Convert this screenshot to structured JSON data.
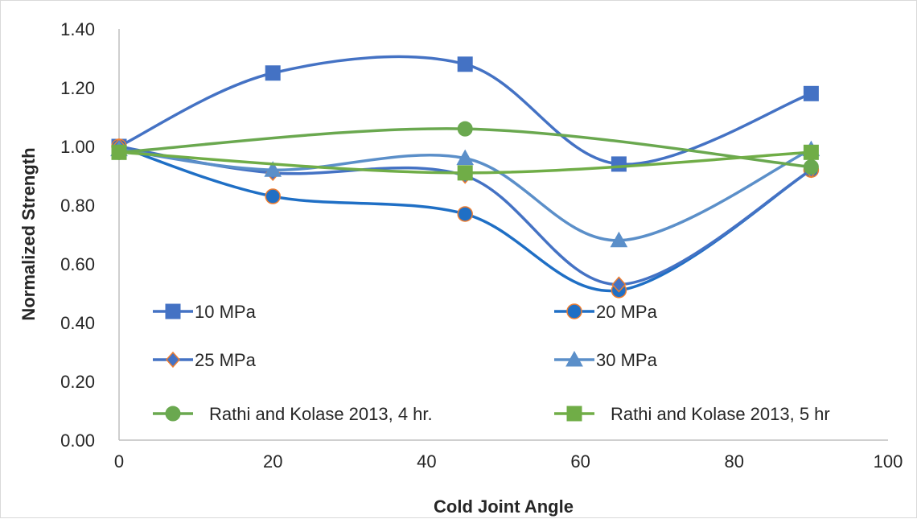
{
  "chart_data": {
    "type": "line",
    "title": "",
    "xlabel": "Cold Joint Angle",
    "ylabel": "Normalized Strength",
    "xlim": [
      0,
      100
    ],
    "ylim": [
      0,
      1.4
    ],
    "x_ticks": [
      "0",
      "20",
      "40",
      "60",
      "80",
      "100"
    ],
    "y_ticks": [
      "0.00",
      "0.20",
      "0.40",
      "0.60",
      "0.80",
      "1.00",
      "1.20",
      "1.40"
    ],
    "grid": false,
    "smooth": true,
    "legend_position": "inside-bottom",
    "series": [
      {
        "name": "10 MPa",
        "color": "#4472C4",
        "marker": "square",
        "x": [
          0,
          20,
          45,
          65,
          90
        ],
        "y": [
          1.0,
          1.25,
          1.28,
          0.94,
          1.18
        ]
      },
      {
        "name": "20 MPa",
        "color": "#1F6FC5",
        "marker": "circle-orange-edge",
        "x": [
          0,
          20,
          45,
          65,
          90
        ],
        "y": [
          1.0,
          0.83,
          0.77,
          0.51,
          0.92
        ]
      },
      {
        "name": "25 MPa",
        "color": "#4472C4",
        "marker": "diamond-orange-edge",
        "x": [
          0,
          20,
          45,
          65,
          90
        ],
        "y": [
          1.0,
          0.91,
          0.9,
          0.53,
          0.92
        ]
      },
      {
        "name": "30 MPa",
        "color": "#5B8FC9",
        "marker": "triangle",
        "x": [
          0,
          20,
          45,
          65,
          90
        ],
        "y": [
          0.99,
          0.92,
          0.96,
          0.68,
          0.99
        ]
      },
      {
        "name": "Rathi and Kolase 2013, 4 hr.",
        "color": "#6AA84F",
        "marker": "circle",
        "x": [
          0,
          45,
          90
        ],
        "y": [
          0.98,
          1.06,
          0.93
        ]
      },
      {
        "name": "Rathi and Kolase 2013, 5 hr",
        "color": "#70AD47",
        "marker": "square",
        "x": [
          0,
          45,
          90
        ],
        "y": [
          0.98,
          0.91,
          0.98
        ]
      }
    ]
  }
}
